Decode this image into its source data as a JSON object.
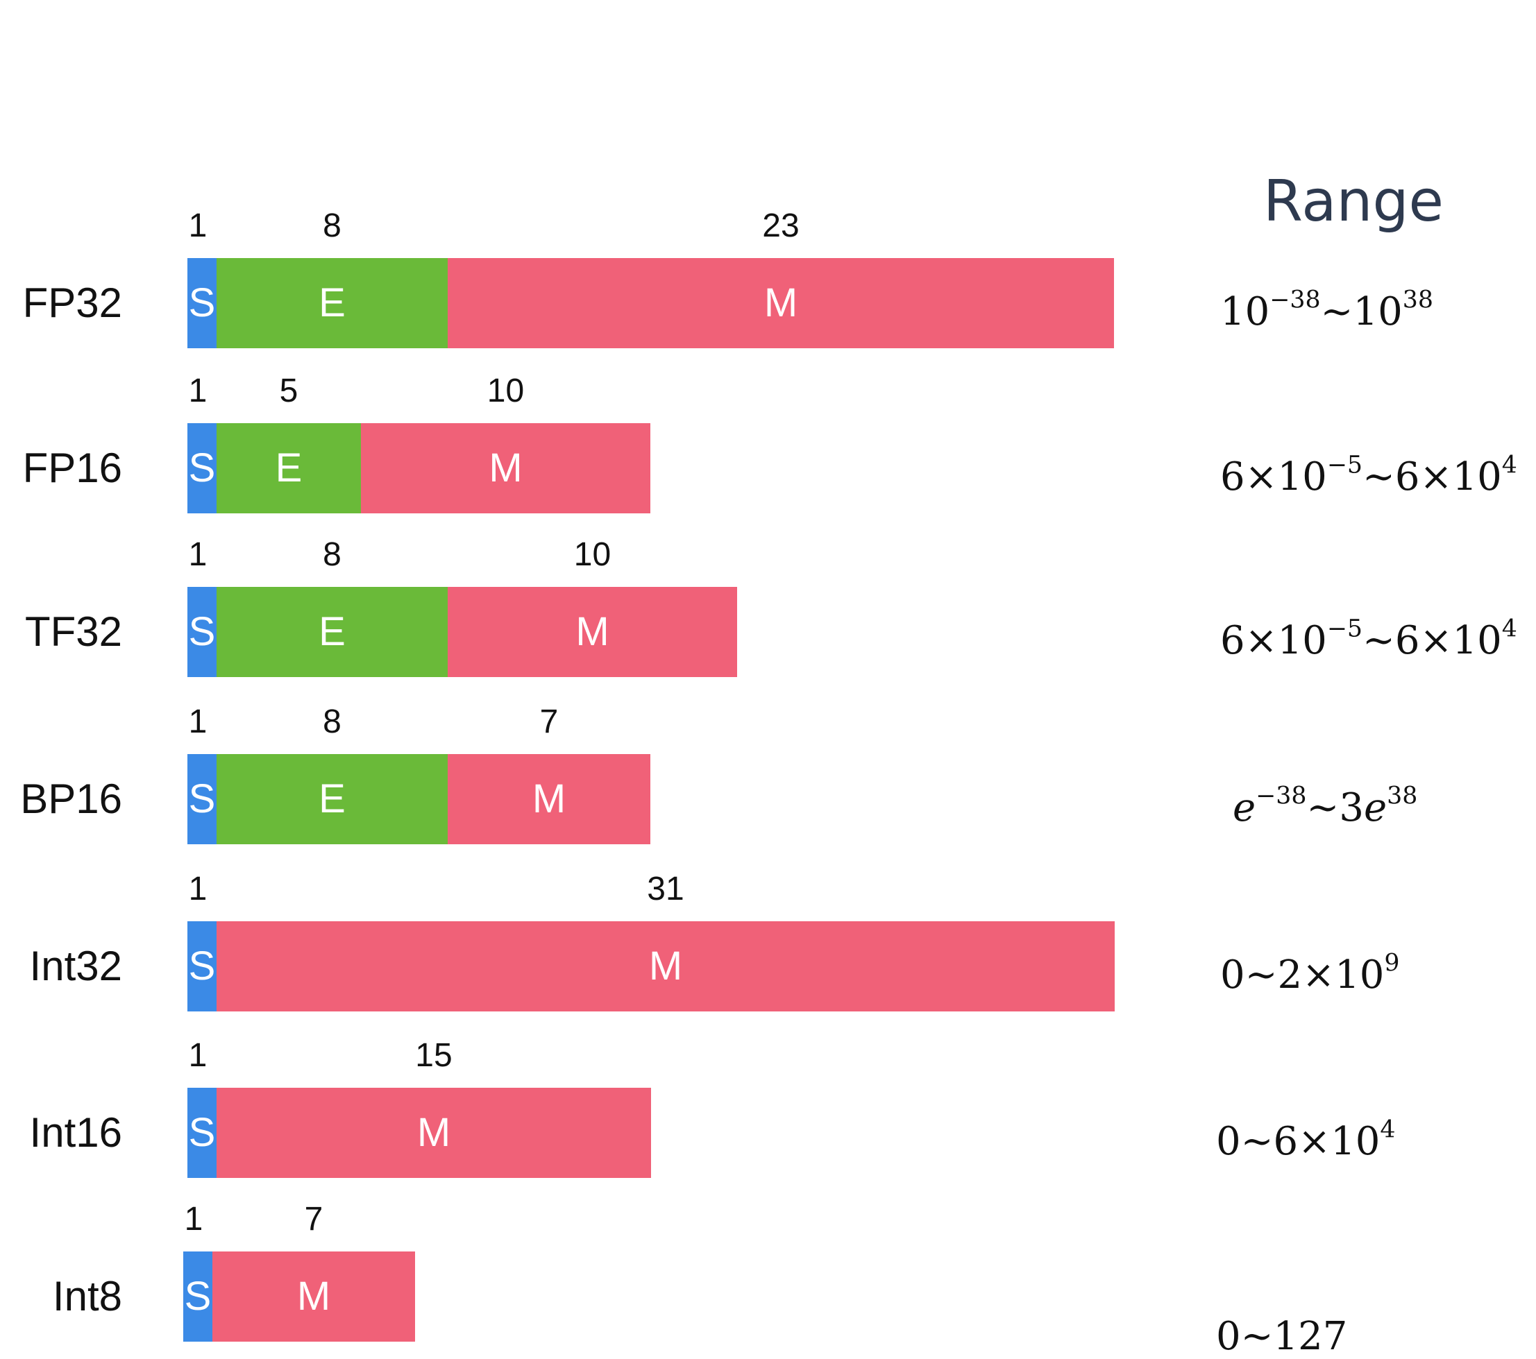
{
  "range_header": "Range",
  "colors": {
    "sign": "#3b8ae6",
    "exponent": "#6aba39",
    "mantissa": "#f06178"
  },
  "formats": [
    {
      "name": "FP32",
      "segments": [
        {
          "kind": "sign",
          "label": "S",
          "bits": 1,
          "bits_label": "1"
        },
        {
          "kind": "exponent",
          "label": "E",
          "bits": 8,
          "bits_label": "8"
        },
        {
          "kind": "mantissa",
          "label": "M",
          "bits": 23,
          "bits_label": "23"
        }
      ],
      "range": {
        "parts": [
          "10",
          "−38",
          "~10",
          "38"
        ]
      }
    },
    {
      "name": "FP16",
      "segments": [
        {
          "kind": "sign",
          "label": "S",
          "bits": 1,
          "bits_label": "1"
        },
        {
          "kind": "exponent",
          "label": "E",
          "bits": 5,
          "bits_label": "5"
        },
        {
          "kind": "mantissa",
          "label": "M",
          "bits": 10,
          "bits_label": "10"
        }
      ],
      "range": {
        "parts": [
          "6×10",
          "−5",
          "~6×10",
          "4"
        ]
      }
    },
    {
      "name": "TF32",
      "segments": [
        {
          "kind": "sign",
          "label": "S",
          "bits": 1,
          "bits_label": "1"
        },
        {
          "kind": "exponent",
          "label": "E",
          "bits": 8,
          "bits_label": "8"
        },
        {
          "kind": "mantissa",
          "label": "M",
          "bits": 10,
          "bits_label": "10"
        }
      ],
      "range": {
        "parts": [
          "6×10",
          "−5",
          "~6×10",
          "4"
        ]
      }
    },
    {
      "name": "BP16",
      "segments": [
        {
          "kind": "sign",
          "label": "S",
          "bits": 1,
          "bits_label": "1"
        },
        {
          "kind": "exponent",
          "label": "E",
          "bits": 8,
          "bits_label": "8"
        },
        {
          "kind": "mantissa",
          "label": "M",
          "bits": 7,
          "bits_label": "7"
        }
      ],
      "range": {
        "italic_e": true,
        "parts": [
          "e",
          "−38",
          "~3e",
          "38"
        ]
      }
    },
    {
      "name": "Int32",
      "segments": [
        {
          "kind": "sign",
          "label": "S",
          "bits": 1,
          "bits_label": "1"
        },
        {
          "kind": "mantissa",
          "label": "M",
          "bits": 31,
          "bits_label": "31"
        }
      ],
      "range": {
        "parts": [
          "0~2×10",
          "9"
        ]
      }
    },
    {
      "name": "Int16",
      "segments": [
        {
          "kind": "sign",
          "label": "S",
          "bits": 1,
          "bits_label": "1"
        },
        {
          "kind": "mantissa",
          "label": "M",
          "bits": 15,
          "bits_label": "15"
        }
      ],
      "range": {
        "parts": [
          "0~6×10",
          "4"
        ]
      }
    },
    {
      "name": "Int8",
      "segments": [
        {
          "kind": "sign",
          "label": "S",
          "bits": 1,
          "bits_label": "1"
        },
        {
          "kind": "mantissa",
          "label": "M",
          "bits": 7,
          "bits_label": "7"
        }
      ],
      "range": {
        "parts": [
          "0~127"
        ]
      }
    }
  ]
}
